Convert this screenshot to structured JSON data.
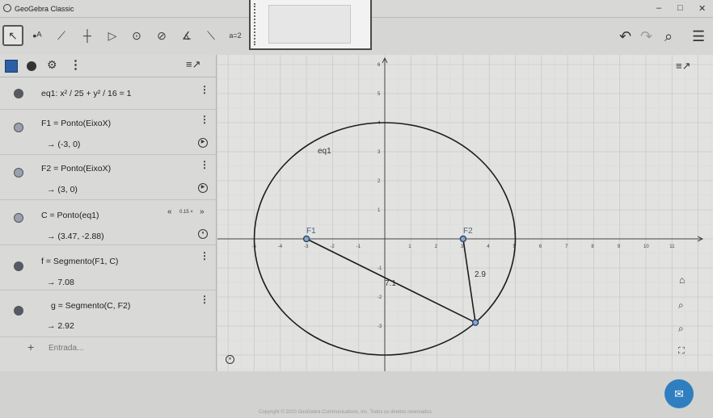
{
  "window": {
    "title": "GeoGebra Classic",
    "minimize": "–",
    "maximize": "□",
    "close": "✕"
  },
  "toolbar": {
    "tools": [
      {
        "name": "move-tool",
        "glyph": "↖"
      },
      {
        "name": "point-tool",
        "glyph": "•ᴬ"
      },
      {
        "name": "line-tool",
        "glyph": "⟋"
      },
      {
        "name": "perpendicular-tool",
        "glyph": "┼"
      },
      {
        "name": "polygon-tool",
        "glyph": "▷"
      },
      {
        "name": "circle-tool",
        "glyph": "⊙"
      },
      {
        "name": "conic-tool",
        "glyph": "⊘"
      },
      {
        "name": "angle-tool",
        "glyph": "∡"
      },
      {
        "name": "reflect-tool",
        "glyph": "⟍"
      },
      {
        "name": "slider-tool",
        "glyph": "a=2"
      }
    ],
    "undo": "↶",
    "redo": "↷",
    "search": "⌕",
    "menu": "☰"
  },
  "algebra": {
    "sort_icon": "≡↗",
    "rows": [
      {
        "def": "eq1: x² / 25 + y² / 16 = 1",
        "val": ""
      },
      {
        "def": "F1 = Ponto(EixoX)",
        "val": "→  (-3, 0)"
      },
      {
        "def": "F2 = Ponto(EixoX)",
        "val": "→  (3, 0)"
      },
      {
        "def": "C = Ponto(eq1)",
        "val": "→  (3.47, -2.88)"
      },
      {
        "def": "f = Segmento(F1, C)",
        "val": "→  7.08"
      },
      {
        "def": "g = Segmento(C, F2)",
        "val": "→  2.92"
      }
    ],
    "speed": "0.15 ×",
    "input_placeholder": "Entrada..."
  },
  "graphics": {
    "x_ticks": [
      "-5",
      "-4",
      "-3",
      "-2",
      "-1",
      "1",
      "2",
      "3",
      "4",
      "5",
      "6",
      "7",
      "8",
      "9",
      "10",
      "11"
    ],
    "y_ticks": [
      "6",
      "5",
      "4",
      "3",
      "2",
      "1",
      "-1",
      "-2",
      "-3"
    ],
    "labels": {
      "eq1": "eq1",
      "F1": "F1",
      "F2": "F2",
      "f_value": "7.1",
      "g_value": "2.9"
    }
  },
  "footer": {
    "copyright": "Copyright © 2020 GeoGebra Communications, Inc. Todos os direitos reservados."
  }
}
